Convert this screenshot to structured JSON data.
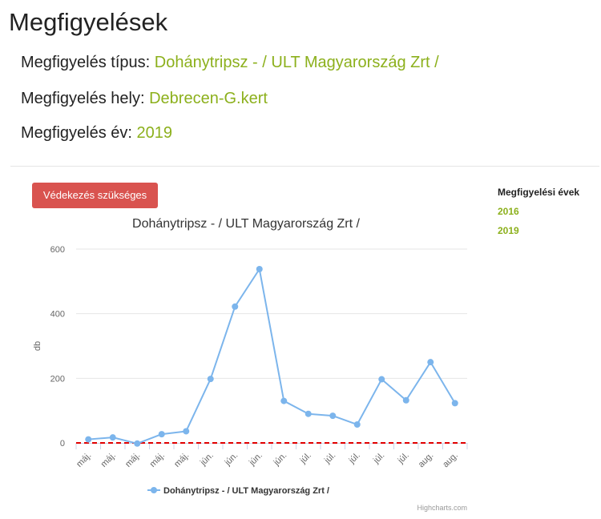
{
  "page": {
    "title": "Megfigyelések"
  },
  "observation": {
    "type_label": "Megfigyelés típus:",
    "type_value": "Dohánytripsz - / ULT Magyarország Zrt /",
    "place_label": "Megfigyelés hely:",
    "place_value": "Debrecen-G.kert",
    "year_label": "Megfigyelés év:",
    "year_value": "2019"
  },
  "actions": {
    "protection_button": "Védekezés szükséges"
  },
  "years_panel": {
    "heading": "Megfigyelési évek",
    "years": [
      "2016",
      "2019"
    ]
  },
  "chart_data": {
    "type": "line",
    "title": "Dohánytripsz - / ULT Magyarország Zrt /",
    "ylabel": "db",
    "xlabel": "",
    "categories": [
      "máj.",
      "máj.",
      "máj.",
      "máj.",
      "máj.",
      "jún.",
      "jún.",
      "jún.",
      "jún.",
      "júl.",
      "júl.",
      "júl.",
      "júl.",
      "júl.",
      "aug.",
      "aug."
    ],
    "series": [
      {
        "name": "Dohánytripsz - / ULT Magyarország Zrt /",
        "values": [
          11,
          17,
          -2,
          27,
          36,
          198,
          422,
          538,
          130,
          90,
          84,
          57,
          197,
          132,
          250,
          123
        ],
        "color": "#7cb5ec"
      }
    ],
    "yticks": [
      0,
      200,
      400,
      600
    ],
    "ylim": [
      0,
      600
    ],
    "threshold": 0,
    "threshold_color": "#e00000",
    "grid": true,
    "legend_position": "bottom",
    "credits": "Highcharts.com"
  }
}
